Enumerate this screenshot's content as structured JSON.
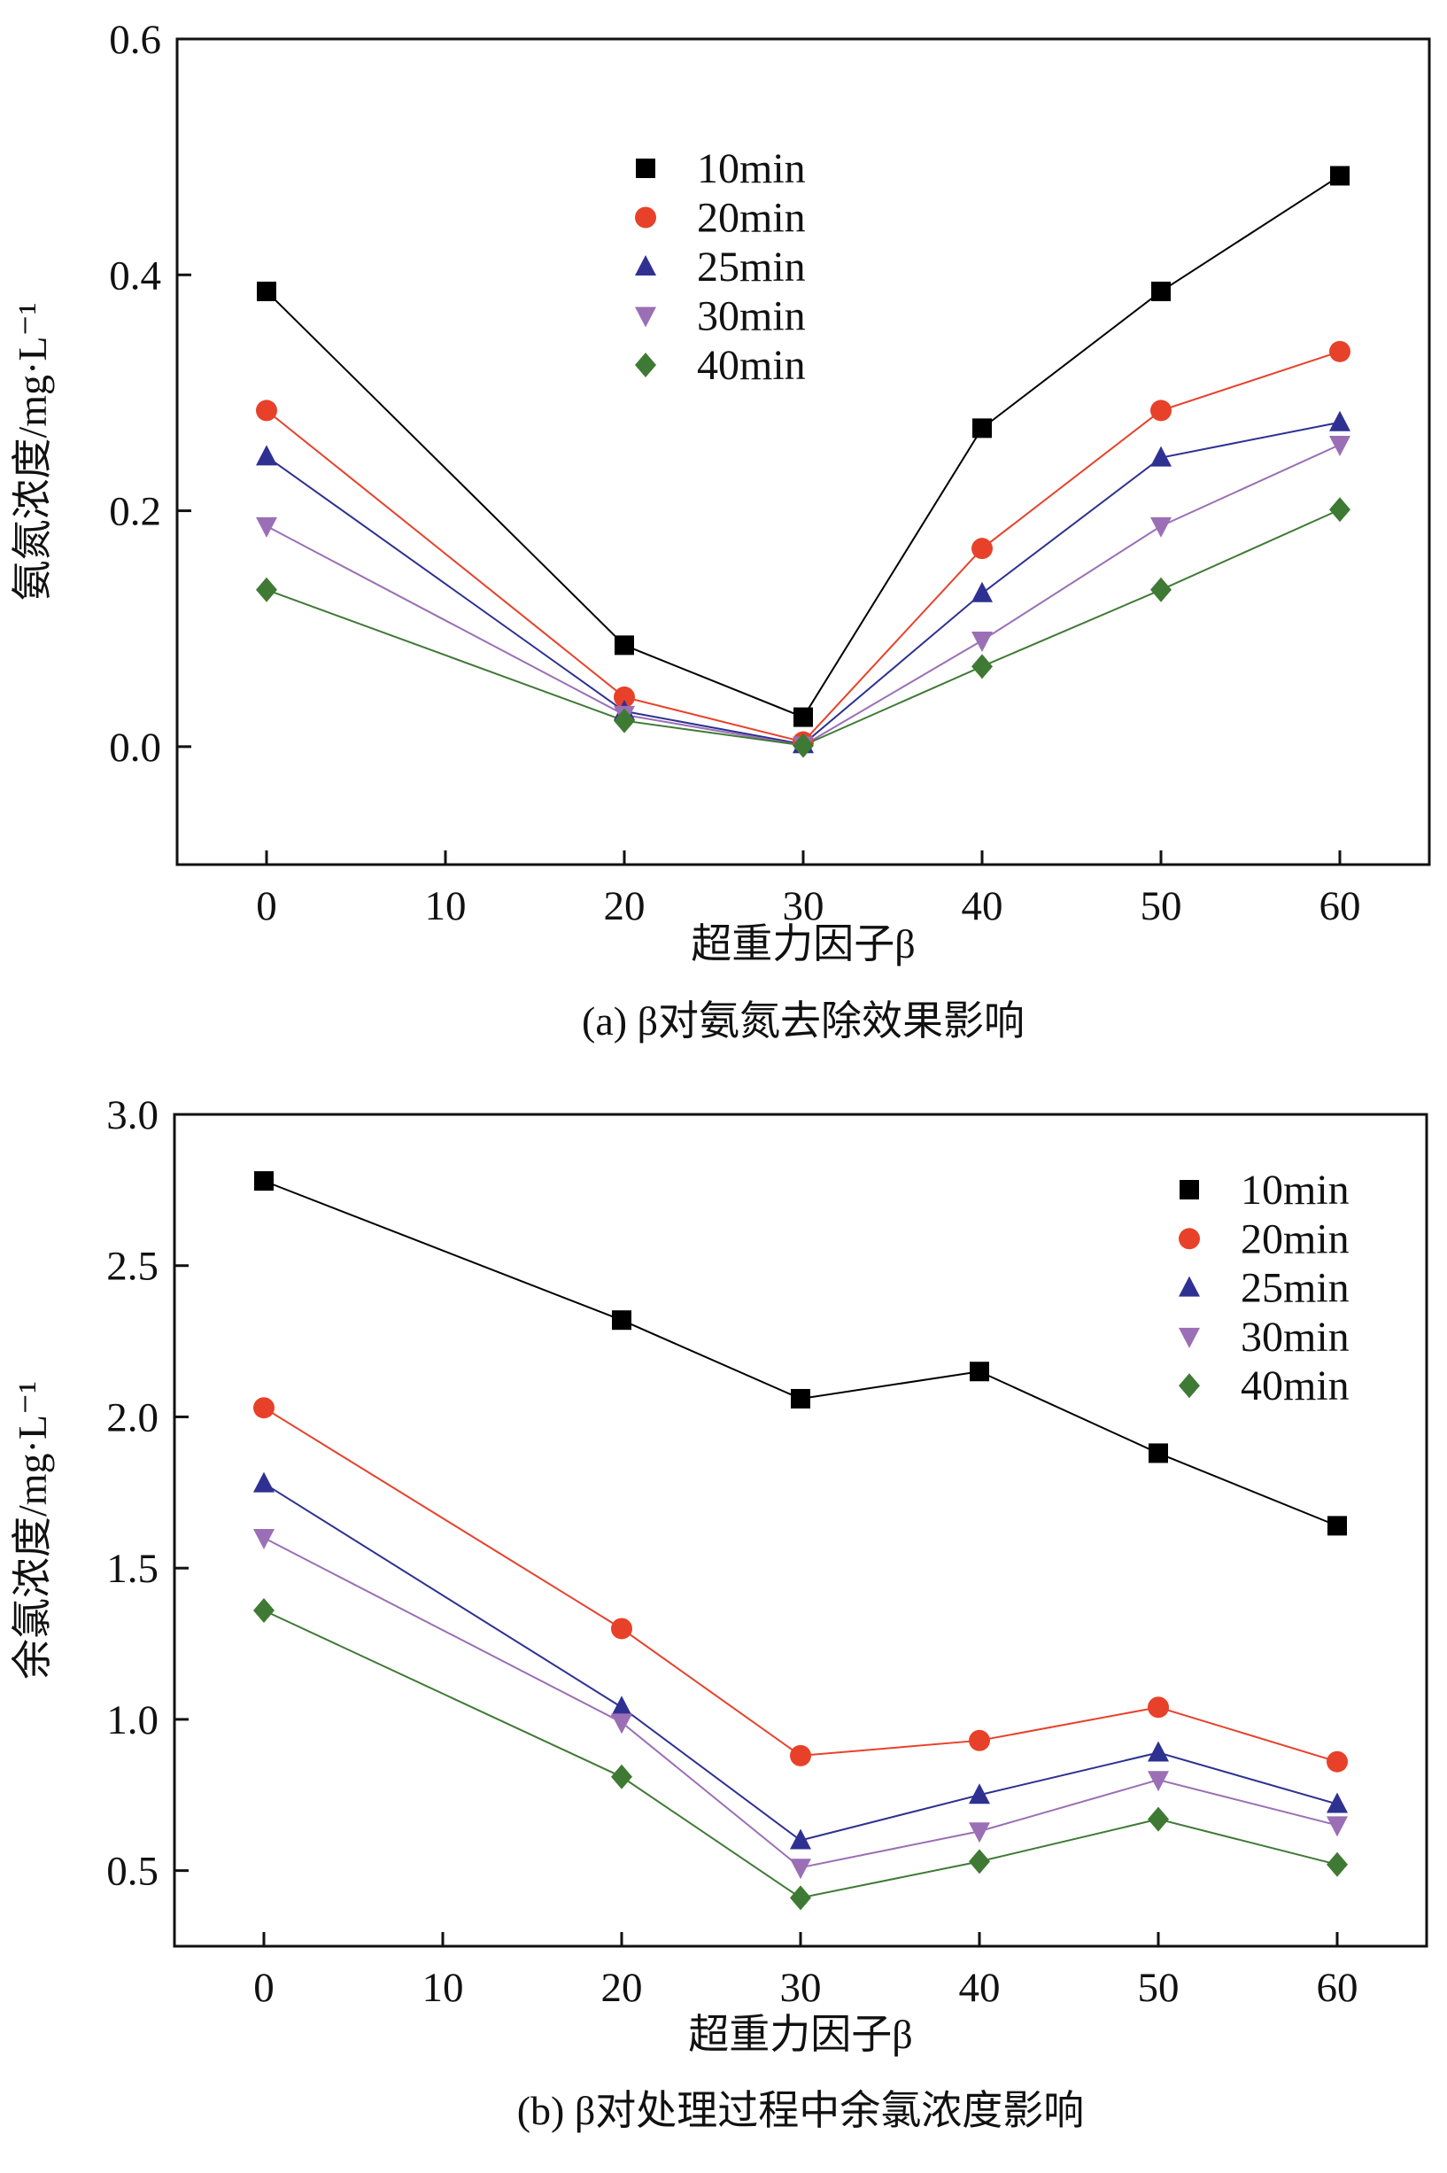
{
  "chart_data": [
    {
      "type": "line",
      "caption": "(a) β对氨氮去除效果影响",
      "xlabel": "超重力因子β",
      "ylabel": "氨氮浓度/mg·L⁻¹",
      "xlim": [
        -5,
        65
      ],
      "ylim": [
        -0.1,
        0.6
      ],
      "xticks": [
        0,
        10,
        20,
        30,
        40,
        50,
        60
      ],
      "yticks": [
        0.0,
        0.2,
        0.4,
        0.6
      ],
      "ytick_labels": [
        "0.0",
        "0.2",
        "0.4",
        "0.6"
      ],
      "legend_placement": "top-center",
      "x": [
        0,
        20,
        30,
        40,
        50,
        60
      ],
      "series": [
        {
          "name": "10min",
          "marker": "square",
          "color": "#000000",
          "values": [
            0.386,
            0.086,
            0.025,
            0.27,
            0.386,
            0.484
          ]
        },
        {
          "name": "20min",
          "marker": "circle",
          "color": "#e8412a",
          "values": [
            0.285,
            0.042,
            0.004,
            0.168,
            0.285,
            0.335
          ]
        },
        {
          "name": "25min",
          "marker": "triangle-up",
          "color": "#2e3192",
          "values": [
            0.246,
            0.03,
            0.002,
            0.13,
            0.245,
            0.275
          ]
        },
        {
          "name": "30min",
          "marker": "triangle-down",
          "color": "#9b6fb5",
          "values": [
            0.187,
            0.027,
            0.001,
            0.09,
            0.187,
            0.256
          ]
        },
        {
          "name": "40min",
          "marker": "diamond",
          "color": "#3f7a35",
          "values": [
            0.133,
            0.022,
            0.001,
            0.068,
            0.133,
            0.201
          ]
        }
      ]
    },
    {
      "type": "line",
      "caption": "(b) β对处理过程中余氯浓度影响",
      "xlabel": "超重力因子β",
      "ylabel": "余氯浓度/mg·L⁻¹",
      "xlim": [
        -5,
        65
      ],
      "ylim": [
        0.25,
        3.0
      ],
      "xticks": [
        0,
        10,
        20,
        30,
        40,
        50,
        60
      ],
      "yticks": [
        0.5,
        1.0,
        1.5,
        2.0,
        2.5,
        3.0
      ],
      "ytick_labels": [
        "0.5",
        "1.0",
        "1.5",
        "2.0",
        "2.5",
        "3.0"
      ],
      "legend_placement": "top-right",
      "x": [
        0,
        20,
        30,
        40,
        50,
        60
      ],
      "series": [
        {
          "name": "10min",
          "marker": "square",
          "color": "#000000",
          "values": [
            2.78,
            2.32,
            2.06,
            2.15,
            1.88,
            1.64
          ]
        },
        {
          "name": "20min",
          "marker": "circle",
          "color": "#e8412a",
          "values": [
            2.03,
            1.3,
            0.88,
            0.93,
            1.04,
            0.86
          ]
        },
        {
          "name": "25min",
          "marker": "triangle-up",
          "color": "#2e3192",
          "values": [
            1.78,
            1.04,
            0.6,
            0.75,
            0.89,
            0.72
          ]
        },
        {
          "name": "30min",
          "marker": "triangle-down",
          "color": "#9b6fb5",
          "values": [
            1.6,
            0.99,
            0.51,
            0.63,
            0.8,
            0.65
          ]
        },
        {
          "name": "40min",
          "marker": "diamond",
          "color": "#3f7a35",
          "values": [
            1.36,
            0.81,
            0.41,
            0.53,
            0.67,
            0.52
          ]
        }
      ]
    }
  ]
}
